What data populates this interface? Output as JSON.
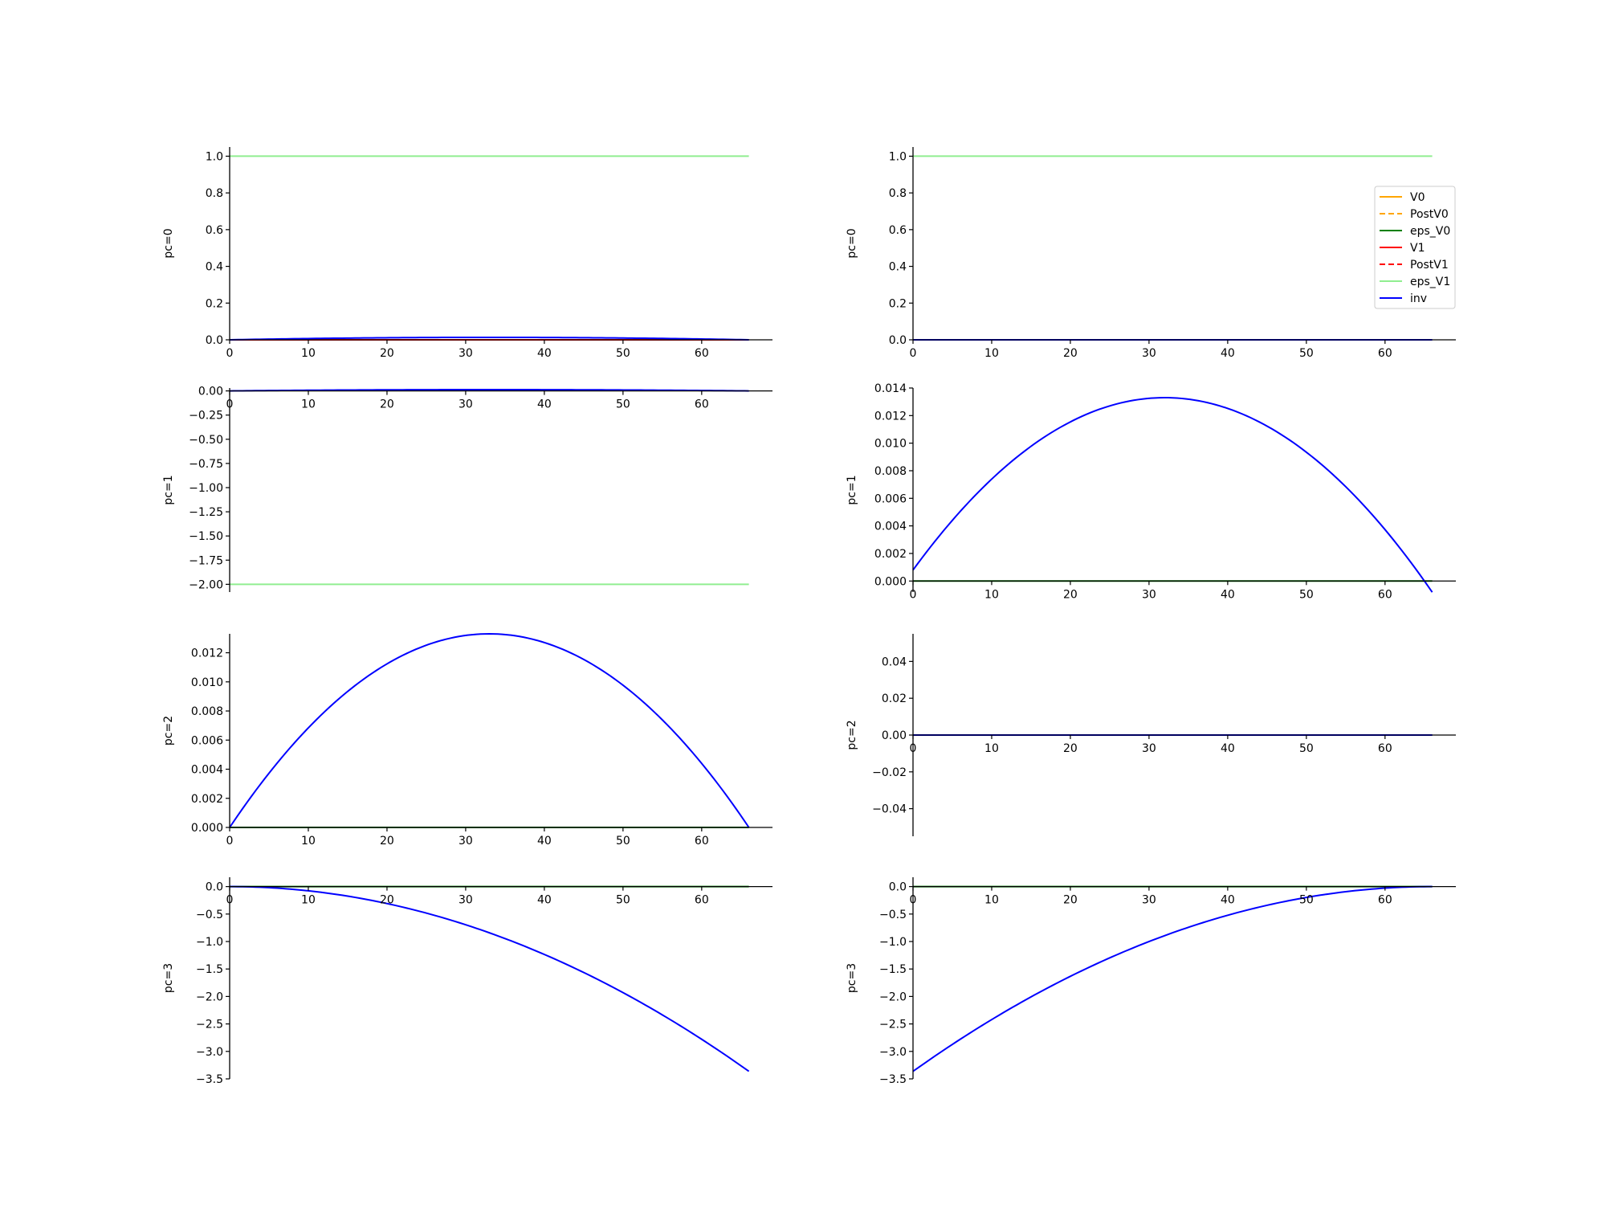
{
  "chart_data": {
    "type": "line",
    "grid": false,
    "legend": {
      "location": "upper right",
      "entries": [
        "V0",
        "PostV0",
        "eps_V0",
        "V1",
        "PostV1",
        "eps_V1",
        "inv"
      ]
    },
    "series_styles": [
      {
        "name": "V0",
        "color": "#ffa500",
        "dash": "solid"
      },
      {
        "name": "PostV0",
        "color": "#ffa500",
        "dash": "dashed"
      },
      {
        "name": "eps_V0",
        "color": "#008000",
        "dash": "solid"
      },
      {
        "name": "V1",
        "color": "#ff0000",
        "dash": "solid"
      },
      {
        "name": "PostV1",
        "color": "#ff0000",
        "dash": "dashed"
      },
      {
        "name": "eps_V1",
        "color": "#90ee90",
        "dash": "solid"
      },
      {
        "name": "inv",
        "color": "#0000ff",
        "dash": "solid"
      }
    ],
    "panels": [
      {
        "ylabel": "pc=0",
        "xlim": [
          0,
          69
        ],
        "ylim": [
          0,
          1.05
        ],
        "xticks": [
          0,
          10,
          20,
          30,
          40,
          50,
          60
        ],
        "xtick_labels": [
          "0",
          "10",
          "20",
          "30",
          "40",
          "50",
          "60"
        ],
        "yticks": [
          0,
          0.2,
          0.4,
          0.6,
          0.8,
          1.0
        ],
        "ytick_labels": [
          "0.0",
          "0.2",
          "0.4",
          "0.6",
          "0.8",
          "1.0"
        ],
        "series": [
          {
            "name": "eps_V1",
            "x": [
              0,
              66
            ],
            "y": [
              1.0,
              1.0
            ]
          },
          {
            "name": "V1",
            "x": [
              0,
              66
            ],
            "y": [
              0,
              0
            ]
          },
          {
            "name": "inv",
            "kind": "parabola",
            "y0": 0.0,
            "peak_x": 33,
            "peak_y": 0.0133,
            "x_end": 66
          }
        ]
      },
      {
        "ylabel": "pc=0",
        "xlim": [
          0,
          69
        ],
        "ylim": [
          0,
          1.05
        ],
        "xticks": [
          0,
          10,
          20,
          30,
          40,
          50,
          60
        ],
        "xtick_labels": [
          "0",
          "10",
          "20",
          "30",
          "40",
          "50",
          "60"
        ],
        "yticks": [
          0,
          0.2,
          0.4,
          0.6,
          0.8,
          1.0
        ],
        "ytick_labels": [
          "0.0",
          "0.2",
          "0.4",
          "0.6",
          "0.8",
          "1.0"
        ],
        "show_legend": true,
        "series": [
          {
            "name": "eps_V1",
            "x": [
              0,
              66
            ],
            "y": [
              1.0,
              1.0
            ]
          },
          {
            "name": "inv",
            "x": [
              0,
              66
            ],
            "y": [
              0,
              0
            ]
          }
        ]
      },
      {
        "ylabel": "pc=1",
        "xlim": [
          0,
          69
        ],
        "ylim": [
          -2.08,
          0.03
        ],
        "xticks": [
          0,
          10,
          20,
          30,
          40,
          50,
          60
        ],
        "xtick_labels": [
          "0",
          "10",
          "20",
          "30",
          "40",
          "50",
          "60"
        ],
        "yticks": [
          0,
          -0.25,
          -0.5,
          -0.75,
          -1.0,
          -1.25,
          -1.5,
          -1.75,
          -2.0
        ],
        "ytick_labels": [
          "0.00",
          "−0.25",
          "−0.50",
          "−0.75",
          "−1.00",
          "−1.25",
          "−1.50",
          "−1.75",
          "−2.00"
        ],
        "series": [
          {
            "name": "eps_V1",
            "x": [
              0,
              66
            ],
            "y": [
              -2.0,
              -2.0
            ]
          },
          {
            "name": "inv",
            "kind": "parabola",
            "y0": 0.0,
            "peak_x": 33,
            "peak_y": 0.0133,
            "x_end": 66
          }
        ]
      },
      {
        "ylabel": "pc=1",
        "xlim": [
          0,
          69
        ],
        "ylim": [
          -0.0008,
          0.014
        ],
        "xticks": [
          0,
          10,
          20,
          30,
          40,
          50,
          60
        ],
        "xtick_labels": [
          "0",
          "10",
          "20",
          "30",
          "40",
          "50",
          "60"
        ],
        "yticks": [
          0,
          0.002,
          0.004,
          0.006,
          0.008,
          0.01,
          0.012,
          0.014
        ],
        "ytick_labels": [
          "0.000",
          "0.002",
          "0.004",
          "0.006",
          "0.008",
          "0.010",
          "0.012",
          "0.014"
        ],
        "series": [
          {
            "name": "eps_V0",
            "x": [
              0,
              66
            ],
            "y": [
              0,
              0
            ]
          },
          {
            "name": "inv",
            "kind": "parabola",
            "y0": 0.0008,
            "peak_x": 32,
            "peak_y": 0.0133,
            "x_end": 66
          }
        ]
      },
      {
        "ylabel": "pc=2",
        "xlim": [
          0,
          69
        ],
        "ylim": [
          0,
          0.0133
        ],
        "xticks": [
          0,
          10,
          20,
          30,
          40,
          50,
          60
        ],
        "xtick_labels": [
          "0",
          "10",
          "20",
          "30",
          "40",
          "50",
          "60"
        ],
        "yticks": [
          0,
          0.002,
          0.004,
          0.006,
          0.008,
          0.01,
          0.012
        ],
        "ytick_labels": [
          "0.000",
          "0.002",
          "0.004",
          "0.006",
          "0.008",
          "0.010",
          "0.012"
        ],
        "series": [
          {
            "name": "eps_V0",
            "x": [
              0,
              66
            ],
            "y": [
              0,
              0
            ]
          },
          {
            "name": "inv",
            "kind": "parabola",
            "y0": 0.0,
            "peak_x": 33,
            "peak_y": 0.0133,
            "x_end": 66
          }
        ]
      },
      {
        "ylabel": "pc=2",
        "xlim": [
          0,
          69
        ],
        "ylim": [
          -0.055,
          0.055
        ],
        "xticks": [
          0,
          10,
          20,
          30,
          40,
          50,
          60
        ],
        "xtick_labels": [
          "0",
          "10",
          "20",
          "30",
          "40",
          "50",
          "60"
        ],
        "yticks": [
          -0.04,
          -0.02,
          0,
          0.02,
          0.04
        ],
        "ytick_labels": [
          "−0.04",
          "−0.02",
          "0.00",
          "0.02",
          "0.04"
        ],
        "series": [
          {
            "name": "eps_V0",
            "x": [
              0,
              66
            ],
            "y": [
              0,
              0
            ]
          },
          {
            "name": "inv",
            "x": [
              0,
              66
            ],
            "y": [
              0,
              0
            ]
          }
        ]
      },
      {
        "ylabel": "pc=3",
        "xlim": [
          0,
          69
        ],
        "ylim": [
          -3.5,
          0.17
        ],
        "xticks": [
          0,
          10,
          20,
          30,
          40,
          50,
          60
        ],
        "xtick_labels": [
          "0",
          "10",
          "20",
          "30",
          "40",
          "50",
          "60"
        ],
        "yticks": [
          0,
          -0.5,
          -1.0,
          -1.5,
          -2.0,
          -2.5,
          -3.0,
          -3.5
        ],
        "ytick_labels": [
          "0.0",
          "−0.5",
          "−1.0",
          "−1.5",
          "−2.0",
          "−2.5",
          "−3.0",
          "−3.5"
        ],
        "series": [
          {
            "name": "eps_V0",
            "x": [
              0,
              66
            ],
            "y": [
              0,
              0
            ]
          },
          {
            "name": "inv",
            "kind": "quadratic",
            "a": -0.000772,
            "h": 0,
            "k": 0,
            "x_end": 66
          }
        ]
      },
      {
        "ylabel": "pc=3",
        "xlim": [
          0,
          69
        ],
        "ylim": [
          -3.5,
          0.17
        ],
        "xticks": [
          0,
          10,
          20,
          30,
          40,
          50,
          60
        ],
        "xtick_labels": [
          "0",
          "10",
          "20",
          "30",
          "40",
          "50",
          "60"
        ],
        "yticks": [
          0,
          -0.5,
          -1.0,
          -1.5,
          -2.0,
          -2.5,
          -3.0,
          -3.5
        ],
        "ytick_labels": [
          "0.0",
          "−0.5",
          "−1.0",
          "−1.5",
          "−2.0",
          "−2.5",
          "−3.0",
          "−3.5"
        ],
        "series": [
          {
            "name": "eps_V0",
            "x": [
              0,
              66
            ],
            "y": [
              0,
              0
            ]
          },
          {
            "name": "inv",
            "kind": "quadratic",
            "a": -0.000772,
            "h": 66,
            "k": 0,
            "x_end": 66
          }
        ]
      }
    ]
  }
}
